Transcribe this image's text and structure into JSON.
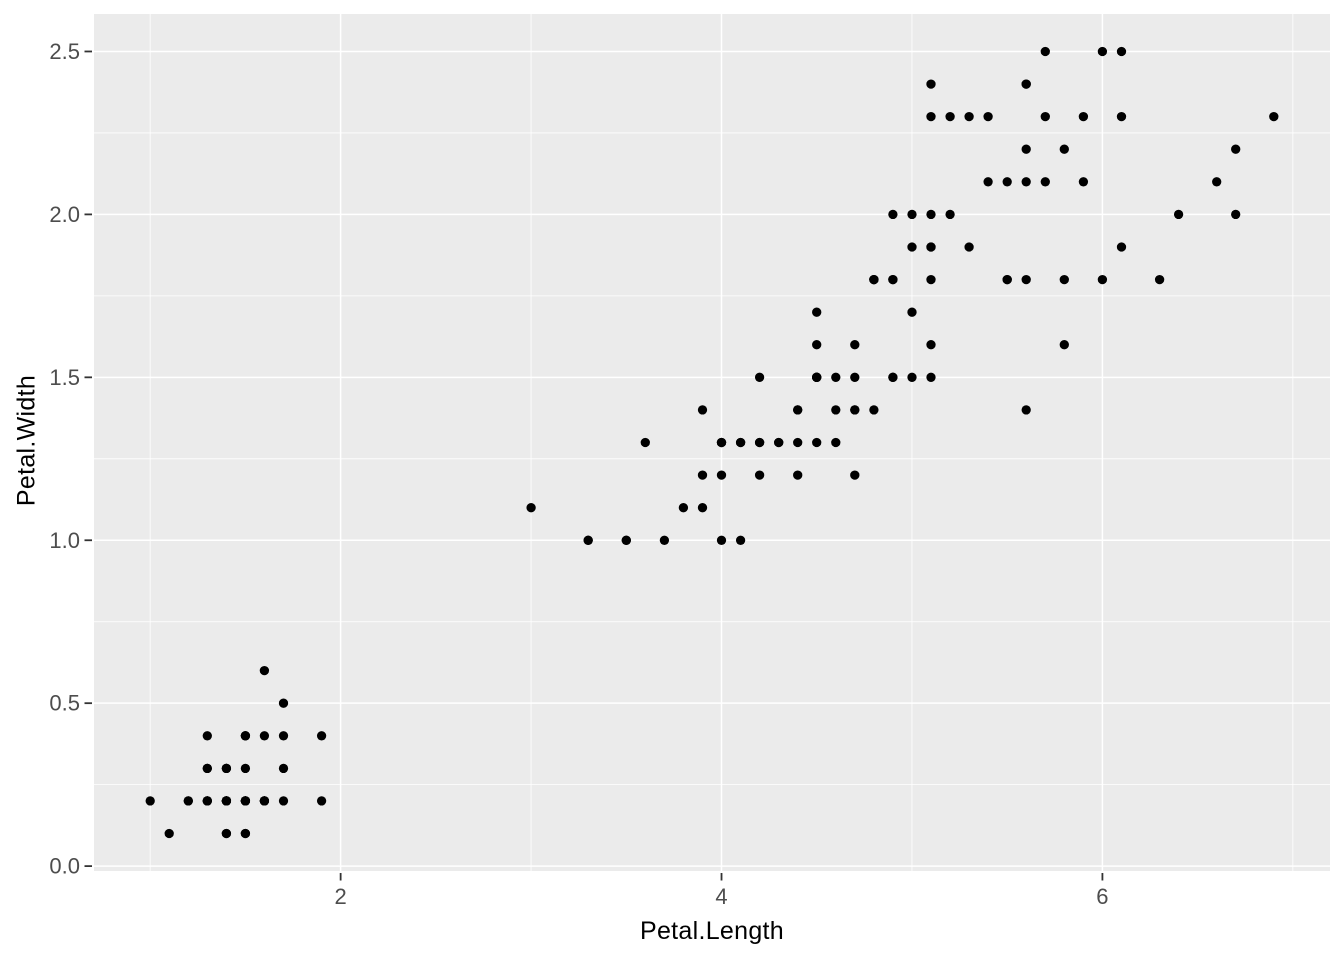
{
  "chart_data": {
    "type": "scatter",
    "title": "",
    "xlabel": "Petal.Length",
    "ylabel": "Petal.Width",
    "xlim": [
      0.705,
      7.195
    ],
    "ylim": [
      -0.015,
      2.615
    ],
    "grid": "major+minor",
    "legend": "none",
    "x_ticks": {
      "values": [
        2,
        4,
        6
      ],
      "labels": [
        "2",
        "4",
        "6"
      ],
      "minor": [
        1,
        3,
        5,
        7
      ]
    },
    "y_ticks": {
      "values": [
        0,
        0.5,
        1,
        1.5,
        2,
        2.5
      ],
      "labels": [
        "0.0",
        "0.5",
        "1.0",
        "1.5",
        "2.0",
        "2.5"
      ],
      "minor": [
        0.25,
        0.75,
        1.25,
        1.75,
        2.25
      ]
    },
    "points": [
      [
        1.4,
        0.2
      ],
      [
        1.4,
        0.2
      ],
      [
        1.3,
        0.2
      ],
      [
        1.5,
        0.2
      ],
      [
        1.4,
        0.2
      ],
      [
        1.7,
        0.4
      ],
      [
        1.4,
        0.3
      ],
      [
        1.5,
        0.2
      ],
      [
        1.4,
        0.2
      ],
      [
        1.5,
        0.1
      ],
      [
        1.5,
        0.2
      ],
      [
        1.6,
        0.2
      ],
      [
        1.4,
        0.1
      ],
      [
        1.1,
        0.1
      ],
      [
        1.2,
        0.2
      ],
      [
        1.5,
        0.4
      ],
      [
        1.3,
        0.4
      ],
      [
        1.4,
        0.3
      ],
      [
        1.7,
        0.3
      ],
      [
        1.5,
        0.3
      ],
      [
        1.7,
        0.2
      ],
      [
        1.5,
        0.4
      ],
      [
        1.0,
        0.2
      ],
      [
        1.7,
        0.5
      ],
      [
        1.9,
        0.2
      ],
      [
        1.6,
        0.2
      ],
      [
        1.6,
        0.4
      ],
      [
        1.5,
        0.2
      ],
      [
        1.4,
        0.2
      ],
      [
        1.6,
        0.2
      ],
      [
        1.6,
        0.2
      ],
      [
        1.5,
        0.4
      ],
      [
        1.5,
        0.1
      ],
      [
        1.4,
        0.2
      ],
      [
        1.5,
        0.2
      ],
      [
        1.2,
        0.2
      ],
      [
        1.3,
        0.2
      ],
      [
        1.4,
        0.1
      ],
      [
        1.3,
        0.2
      ],
      [
        1.5,
        0.2
      ],
      [
        1.3,
        0.3
      ],
      [
        1.3,
        0.3
      ],
      [
        1.3,
        0.2
      ],
      [
        1.6,
        0.6
      ],
      [
        1.9,
        0.4
      ],
      [
        1.4,
        0.3
      ],
      [
        1.6,
        0.2
      ],
      [
        1.4,
        0.2
      ],
      [
        1.5,
        0.2
      ],
      [
        1.4,
        0.2
      ],
      [
        4.7,
        1.4
      ],
      [
        4.5,
        1.5
      ],
      [
        4.9,
        1.5
      ],
      [
        4.0,
        1.3
      ],
      [
        4.6,
        1.5
      ],
      [
        4.5,
        1.3
      ],
      [
        4.7,
        1.6
      ],
      [
        3.3,
        1.0
      ],
      [
        4.6,
        1.3
      ],
      [
        3.9,
        1.4
      ],
      [
        3.5,
        1.0
      ],
      [
        4.2,
        1.5
      ],
      [
        4.0,
        1.0
      ],
      [
        4.7,
        1.4
      ],
      [
        3.6,
        1.3
      ],
      [
        4.4,
        1.4
      ],
      [
        4.5,
        1.5
      ],
      [
        4.1,
        1.0
      ],
      [
        4.5,
        1.5
      ],
      [
        3.9,
        1.1
      ],
      [
        4.8,
        1.8
      ],
      [
        4.0,
        1.3
      ],
      [
        4.9,
        1.5
      ],
      [
        4.7,
        1.2
      ],
      [
        4.3,
        1.3
      ],
      [
        4.4,
        1.4
      ],
      [
        4.8,
        1.4
      ],
      [
        5.0,
        1.7
      ],
      [
        4.5,
        1.5
      ],
      [
        3.5,
        1.0
      ],
      [
        3.8,
        1.1
      ],
      [
        3.7,
        1.0
      ],
      [
        3.9,
        1.2
      ],
      [
        5.1,
        1.6
      ],
      [
        4.5,
        1.5
      ],
      [
        4.5,
        1.6
      ],
      [
        4.7,
        1.5
      ],
      [
        4.4,
        1.3
      ],
      [
        4.1,
        1.3
      ],
      [
        4.0,
        1.3
      ],
      [
        4.4,
        1.2
      ],
      [
        4.6,
        1.4
      ],
      [
        4.0,
        1.2
      ],
      [
        3.3,
        1.0
      ],
      [
        4.2,
        1.3
      ],
      [
        4.2,
        1.2
      ],
      [
        4.2,
        1.3
      ],
      [
        4.3,
        1.3
      ],
      [
        3.0,
        1.1
      ],
      [
        4.1,
        1.3
      ],
      [
        6.0,
        2.5
      ],
      [
        5.1,
        1.9
      ],
      [
        5.9,
        2.1
      ],
      [
        5.6,
        1.8
      ],
      [
        5.8,
        2.2
      ],
      [
        6.6,
        2.1
      ],
      [
        4.5,
        1.7
      ],
      [
        6.3,
        1.8
      ],
      [
        5.8,
        1.8
      ],
      [
        6.1,
        2.5
      ],
      [
        5.1,
        2.0
      ],
      [
        5.3,
        1.9
      ],
      [
        5.5,
        2.1
      ],
      [
        5.0,
        2.0
      ],
      [
        5.1,
        2.4
      ],
      [
        5.3,
        2.3
      ],
      [
        5.5,
        1.8
      ],
      [
        6.7,
        2.2
      ],
      [
        6.9,
        2.3
      ],
      [
        5.0,
        1.5
      ],
      [
        5.7,
        2.3
      ],
      [
        4.9,
        2.0
      ],
      [
        6.7,
        2.0
      ],
      [
        4.9,
        1.8
      ],
      [
        5.7,
        2.1
      ],
      [
        6.0,
        1.8
      ],
      [
        4.8,
        1.8
      ],
      [
        4.9,
        1.8
      ],
      [
        5.6,
        2.1
      ],
      [
        5.8,
        1.6
      ],
      [
        6.1,
        1.9
      ],
      [
        6.4,
        2.0
      ],
      [
        5.6,
        2.2
      ],
      [
        5.1,
        1.5
      ],
      [
        5.6,
        1.4
      ],
      [
        6.1,
        2.3
      ],
      [
        5.6,
        2.4
      ],
      [
        5.5,
        1.8
      ],
      [
        4.8,
        1.8
      ],
      [
        5.4,
        2.1
      ],
      [
        5.6,
        2.4
      ],
      [
        5.1,
        2.3
      ],
      [
        5.1,
        1.9
      ],
      [
        5.9,
        2.3
      ],
      [
        5.7,
        2.5
      ],
      [
        5.2,
        2.3
      ],
      [
        5.0,
        1.9
      ],
      [
        5.2,
        2.0
      ],
      [
        5.4,
        2.3
      ],
      [
        5.1,
        1.8
      ]
    ]
  },
  "style": {
    "outer_bg": "#FFFFFF",
    "panel_bg": "#EBEBEB",
    "grid_color": "#FFFFFF",
    "point_color": "#000000",
    "tick_label_color": "#4D4D4D",
    "tick_mark_color": "#333333",
    "axis_title_color": "#000000"
  }
}
